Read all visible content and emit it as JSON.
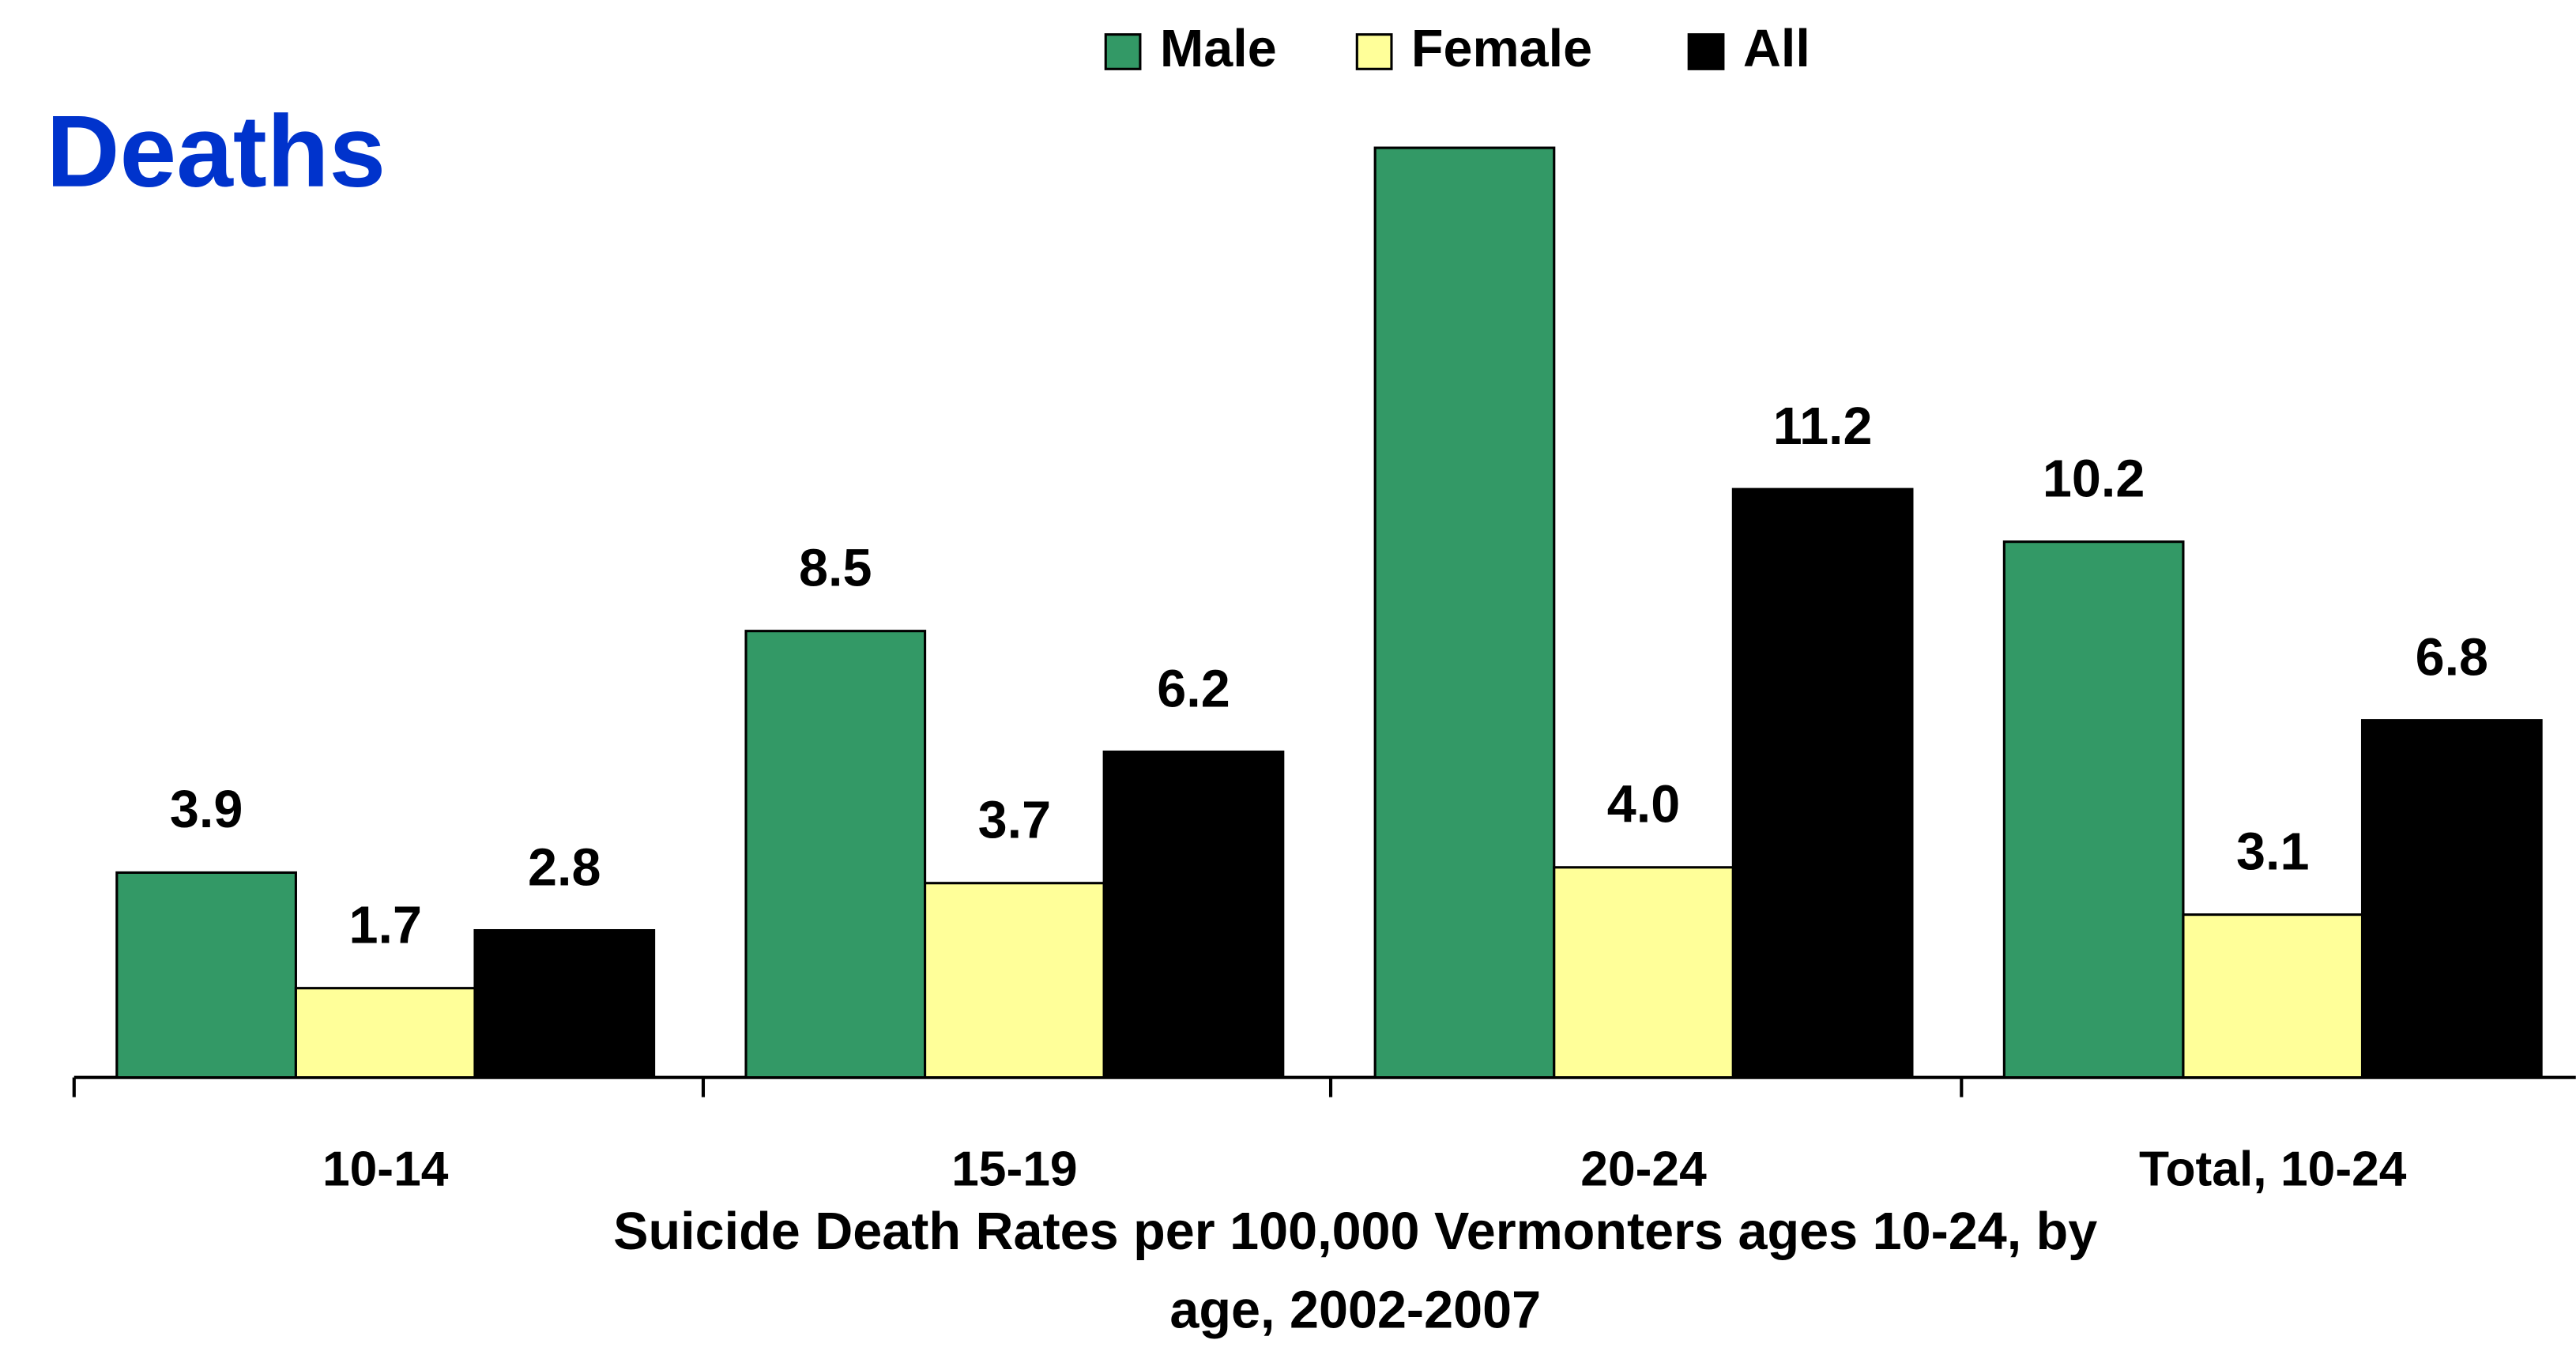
{
  "chart_data": {
    "type": "bar",
    "title": "Deaths",
    "x_label": [
      "Suicide Death Rates per 100,000 Vermonters ages 10-24, by",
      "age, 2002-2007"
    ],
    "categories": [
      "10-14",
      "15-19",
      "20-24",
      "Total, 10-24"
    ],
    "series": [
      {
        "name": "Male",
        "color": "#339966",
        "values": [
          3.9,
          8.5,
          17.7,
          10.2
        ],
        "value_labels": [
          "3.9",
          "8.5",
          null,
          "10.2"
        ]
      },
      {
        "name": "Female",
        "color": "#ffff99",
        "values": [
          1.7,
          3.7,
          4.0,
          3.1
        ],
        "value_labels": [
          "1.7",
          "3.7",
          "4.0",
          "3.1"
        ]
      },
      {
        "name": "All",
        "color": "#000000",
        "values": [
          2.8,
          6.2,
          11.2,
          6.8
        ],
        "value_labels": [
          "2.8",
          "6.2",
          "11.2",
          "6.8"
        ]
      }
    ],
    "ylim": [
      0,
      17.7
    ],
    "legend": "top"
  }
}
